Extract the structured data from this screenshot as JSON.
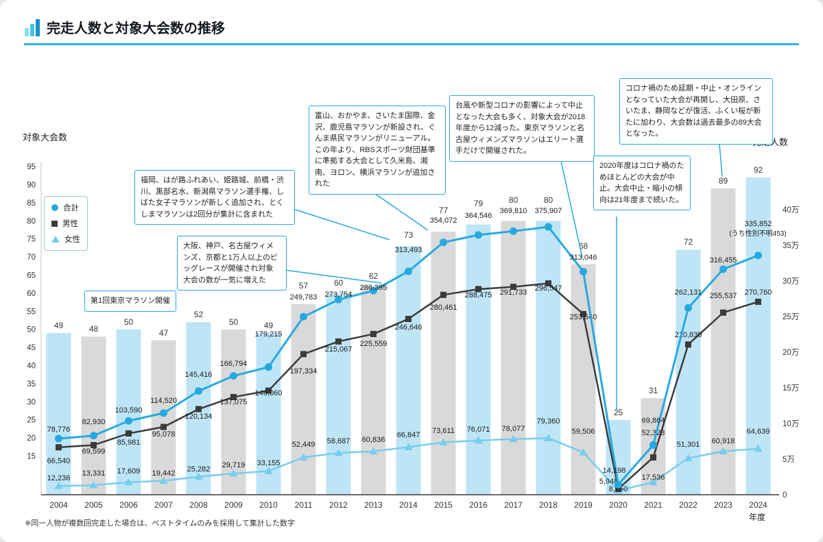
{
  "page": {
    "title": "完走人数と対象大会数の推移",
    "footnote": "※同一人物が複数回完走した場合は、ベストタイムのみを採用して集計した数字",
    "x_axis_unit": "年度"
  },
  "colors": {
    "accent": "#29a8dc",
    "bar_blue": "#bee5f6",
    "bar_gray": "#d9d9d9",
    "total": "#27a9e0",
    "male": "#3a3a3a",
    "female": "#76cdec"
  },
  "chart_data": {
    "type": "combo-bar-line",
    "title": "完走人数と対象大会数の推移",
    "categories": [
      "2004",
      "2005",
      "2006",
      "2007",
      "2008",
      "2009",
      "2010",
      "2011",
      "2012",
      "2013",
      "2014",
      "2015",
      "2016",
      "2017",
      "2018",
      "2019",
      "2020",
      "2021",
      "2022",
      "2023",
      "2024"
    ],
    "bars": {
      "name": "対象大会数",
      "values": [
        49,
        48,
        50,
        47,
        52,
        50,
        49,
        57,
        60,
        62,
        73,
        77,
        79,
        80,
        80,
        68,
        25,
        31,
        72,
        89,
        92
      ]
    },
    "left_axis": {
      "label": "対象大会数",
      "ticks": [
        15,
        20,
        25,
        30,
        35,
        40,
        45,
        50,
        55,
        60,
        65,
        70,
        75,
        80,
        85,
        90,
        95
      ]
    },
    "right_axis": {
      "label": "完走人数",
      "ticks": [
        "0",
        "5万",
        "10万",
        "15万",
        "20万",
        "25万",
        "30万",
        "35万",
        "40万"
      ],
      "range": [
        0,
        430000
      ]
    },
    "series": [
      {
        "name": "合計",
        "marker": "circle",
        "color": "#27a9e0",
        "values": [
          78776,
          82930,
          103590,
          114520,
          145416,
          166794,
          179215,
          249783,
          273754,
          286395,
          313493,
          354072,
          364546,
          369810,
          375907,
          313046,
          14198,
          69864,
          262131,
          316455,
          335852
        ]
      },
      {
        "name": "男性",
        "marker": "square",
        "color": "#3a3a3a",
        "values": [
          66540,
          69599,
          85981,
          95078,
          120134,
          137075,
          146060,
          197334,
          215067,
          225559,
          246646,
          280461,
          288475,
          291733,
          296547,
          253540,
          8250,
          52328,
          210830,
          255537,
          270760
        ]
      },
      {
        "name": "女性",
        "marker": "triangle",
        "color": "#76cdec",
        "values": [
          12236,
          13331,
          17609,
          19442,
          25282,
          29719,
          33155,
          52449,
          58687,
          60836,
          66847,
          73611,
          76071,
          78077,
          79360,
          59506,
          5948,
          17536,
          51301,
          60918,
          64639
        ]
      }
    ],
    "total_note": "(うち性別不明453)",
    "annotations": [
      {
        "text": "第1回東京マラソン開催"
      },
      {
        "text": "大阪、神戸、名古屋ウィメンズ、京都と1万人以上のビッグレースが開催され対象大会の数が一気に増えた"
      },
      {
        "text": "福岡、はが路ふれあい、姫路城、前橋・渋川、黒部名水、新潟県マラソン選手権、しばた女子マラソンが新しく追加され、とくしまマラソンは2回分が集計に含まれた"
      },
      {
        "text": "富山、おかやま、さいたま国際、金沢、鹿児島マラソンが新設され、ぐんま県民マラソンがリニューアル。この年より、RBSスポーツ財団基準に準拠する大会として久米島、湘南、ヨロン、横浜マラソンが追加された"
      },
      {
        "text": "台風や新型コロナの影響によって中止となった大会も多く、対象大会が2018年度から12減った。東京マラソンと名古屋ウィメンズマラソンはエリート選手だけで開催された。"
      },
      {
        "text": "2020年度はコロナ禍のためほとんどの大会が中止。大会中止・縮小の傾向は21年度まで続いた。"
      },
      {
        "text": "コロナ禍のため延期・中止・オンラインとなっていた大会が再開し、大田原、さいたま、静岡などが復活、ふくい桜が新たに加わり、大会数は過去最多の89大会となった。"
      }
    ]
  }
}
